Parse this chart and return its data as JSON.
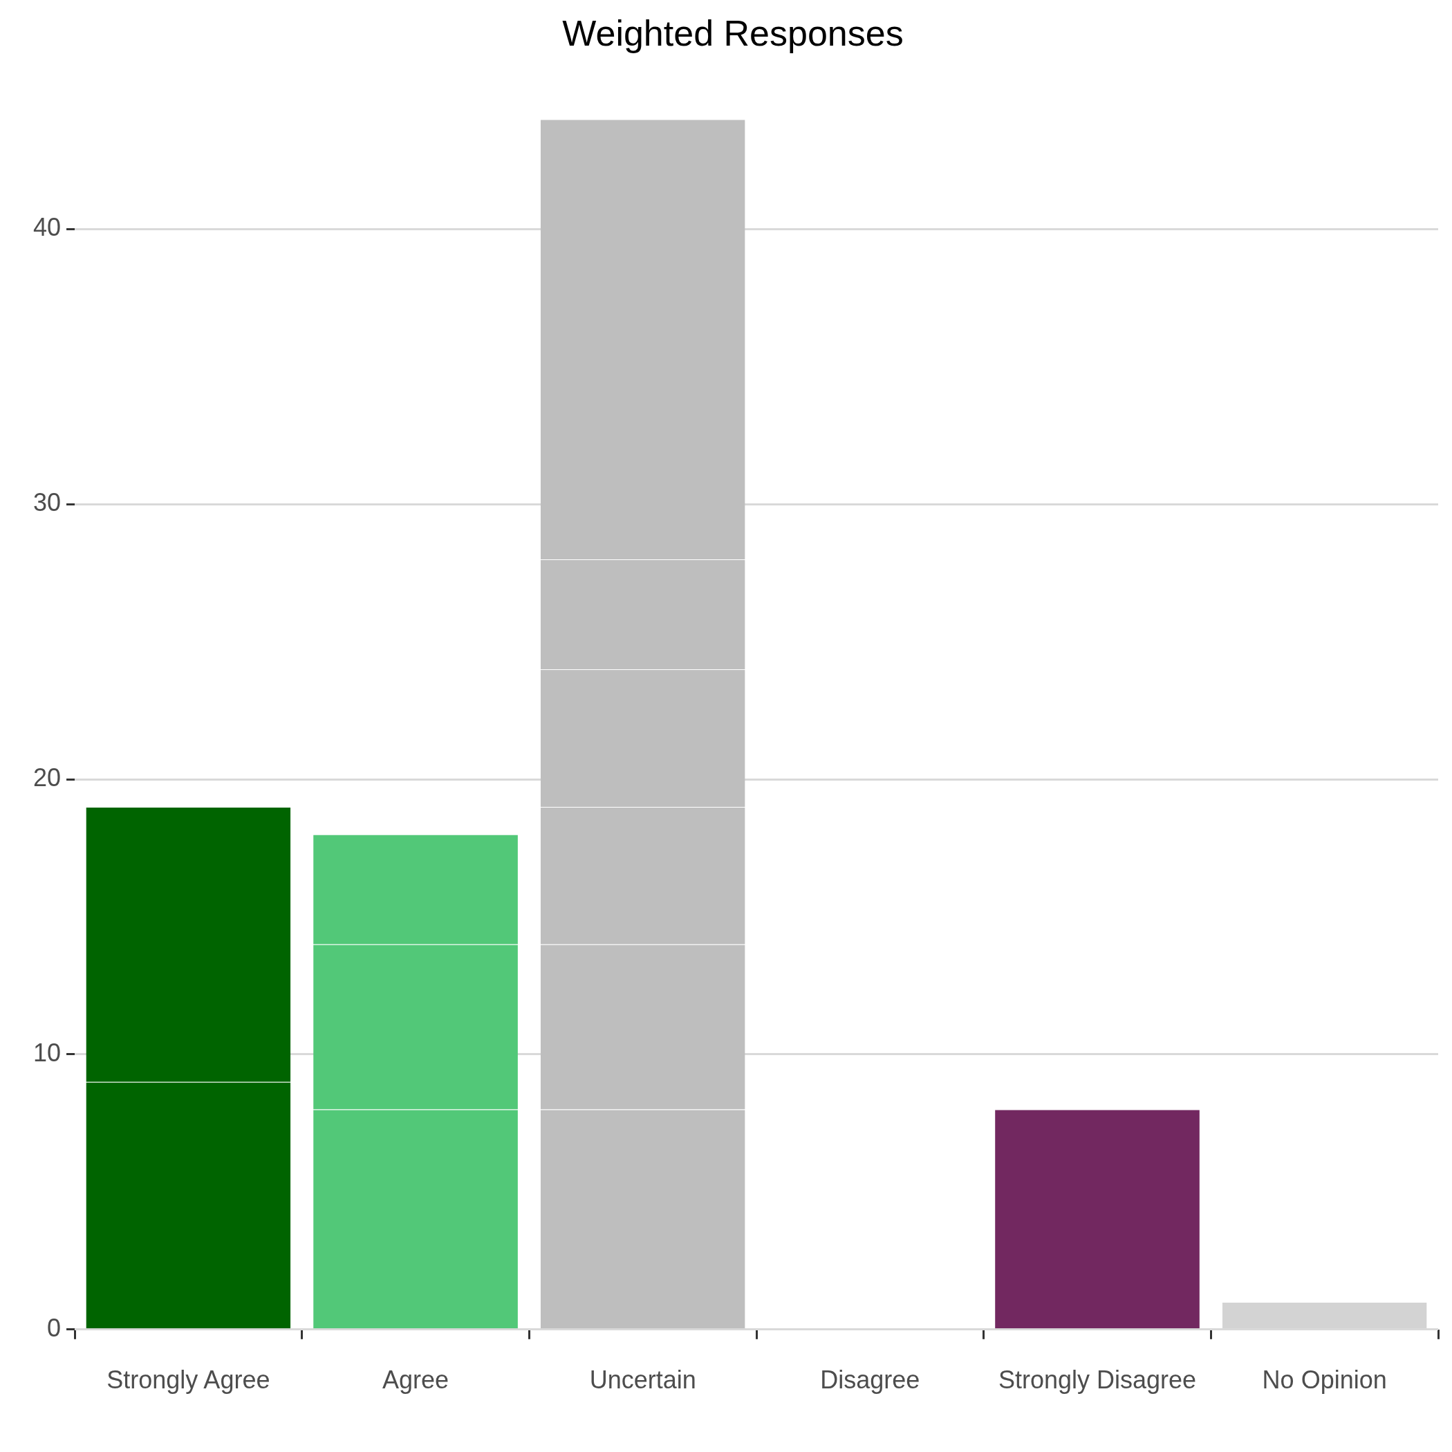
{
  "chart_data": {
    "type": "bar",
    "title": "Weighted Responses",
    "categories": [
      "Strongly Agree",
      "Agree",
      "Uncertain",
      "Disagree",
      "Strongly Disagree",
      "No Opinion"
    ],
    "stacked": true,
    "series": [
      {
        "colors": [
          "#006400",
          "#52c878",
          "#bebebe",
          "#bebebe",
          "#722860",
          "#d3d3d3"
        ],
        "values": [
          9,
          8,
          8,
          null,
          8,
          1
        ]
      },
      {
        "colors": [
          "#006400",
          "#52c878",
          "#bebebe",
          "#bebebe",
          "#722860",
          "#d3d3d3"
        ],
        "values": [
          10,
          6,
          6,
          null,
          null,
          null
        ]
      },
      {
        "colors": [
          "#006400",
          "#52c878",
          "#bebebe",
          "#bebebe",
          "#722860",
          "#d3d3d3"
        ],
        "values": [
          null,
          4,
          5,
          null,
          null,
          null
        ]
      },
      {
        "colors": [
          "#006400",
          "#52c878",
          "#bebebe",
          "#bebebe",
          "#722860",
          "#d3d3d3"
        ],
        "values": [
          null,
          null,
          5,
          null,
          null,
          null
        ]
      },
      {
        "colors": [
          "#006400",
          "#52c878",
          "#bebebe",
          "#bebebe",
          "#722860",
          "#d3d3d3"
        ],
        "values": [
          null,
          null,
          4,
          null,
          null,
          null
        ]
      },
      {
        "colors": [
          "#006400",
          "#52c878",
          "#bebebe",
          "#bebebe",
          "#722860",
          "#d3d3d3"
        ],
        "values": [
          null,
          null,
          16,
          null,
          null,
          null
        ]
      }
    ],
    "ylim": [
      0,
      44
    ],
    "yticks": [
      0,
      10,
      20,
      30,
      40
    ],
    "grid": "y",
    "legend": false
  }
}
